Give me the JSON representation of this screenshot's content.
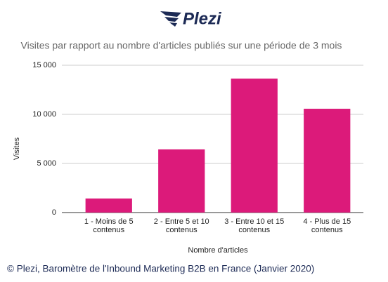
{
  "logo": "Plezi",
  "caption": "© Plezi, Baromètre de l'Inbound Marketing B2B en France (Janvier 2020)",
  "chart_data": {
    "type": "bar",
    "title": "Visites par rapport au nombre d'articles publiés sur une période de 3 mois",
    "x_label": "Nombre d'articles",
    "y_label": "Visites",
    "categories": [
      "1 - Moins de 5 contenus",
      "2 - Entre 5 et 10 contenus",
      "3 - Entre 10 et 15 contenus",
      "4 - Plus de 15 contenus"
    ],
    "values": [
      1430,
      6430,
      13640,
      10570
    ],
    "color": "#dc1a7a",
    "ylim": [
      0,
      15000
    ],
    "yticks": [
      0,
      {
        "value": 5000,
        "label": "5 000"
      },
      {
        "value": 10000,
        "label": "10 000"
      },
      {
        "value": 15000,
        "label": "15 000"
      }
    ],
    "grid": true
  }
}
